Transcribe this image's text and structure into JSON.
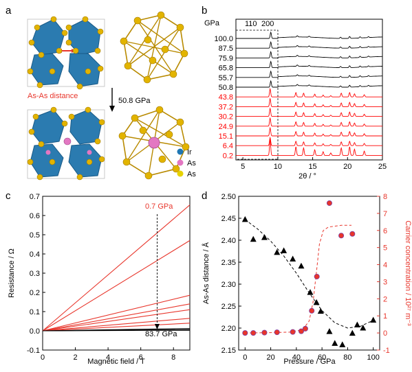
{
  "panels": {
    "a": {
      "letter": "a",
      "distance_label": "As-As distance",
      "arrow_label": "50.8 GPa",
      "legend": [
        {
          "label": "Ir",
          "color": "#1f77b4"
        },
        {
          "label": "As",
          "color": "#e377c2"
        },
        {
          "label": "As",
          "color": "#e6d200"
        }
      ]
    },
    "b": {
      "letter": "b",
      "unit_label": "GPa",
      "peak_labels": [
        "110",
        "200"
      ],
      "pressures_black": [
        "100.0",
        "87.5",
        "75.9",
        "65.8",
        "55.7",
        "50.8"
      ],
      "pressures_red": [
        "43.8",
        "37.2",
        "30.2",
        "24.9",
        "15.1",
        "6.4",
        "0.2"
      ],
      "xlabel": "2θ / °",
      "xticks": [
        "5",
        "10",
        "15",
        "20",
        "25"
      ]
    },
    "c": {
      "letter": "c",
      "annotation_top": "0.7 GPa",
      "annotation_bottom": "83.7 GPa"
    },
    "d": {
      "letter": "d"
    }
  },
  "chart_data": [
    {
      "type": "line",
      "panel": "b",
      "xlabel": "2θ / °",
      "xlim": [
        4,
        25
      ],
      "series": [
        {
          "name": "100.0",
          "color": "#000000"
        },
        {
          "name": "87.5",
          "color": "#000000"
        },
        {
          "name": "75.9",
          "color": "#000000"
        },
        {
          "name": "65.8",
          "color": "#000000"
        },
        {
          "name": "55.7",
          "color": "#000000"
        },
        {
          "name": "50.8",
          "color": "#000000"
        },
        {
          "name": "43.8",
          "color": "#ff0000"
        },
        {
          "name": "37.2",
          "color": "#ff0000"
        },
        {
          "name": "30.2",
          "color": "#ff0000"
        },
        {
          "name": "24.9",
          "color": "#ff0000"
        },
        {
          "name": "15.1",
          "color": "#ff0000"
        },
        {
          "name": "6.4",
          "color": "#ff0000"
        },
        {
          "name": "0.2",
          "color": "#ff0000"
        }
      ]
    },
    {
      "type": "line",
      "panel": "c",
      "xlabel": "Magnetic field / T",
      "ylabel": "Resistance / Ω",
      "xlim": [
        0,
        9
      ],
      "ylim": [
        -0.1,
        0.7
      ],
      "xticks": [
        0,
        2,
        4,
        6,
        8
      ],
      "yticks": [
        -0.1,
        0.0,
        0.1,
        0.2,
        0.3,
        0.4,
        0.5,
        0.6,
        0.7
      ],
      "marker_x": 7,
      "series": [
        {
          "values": [
            [
              0,
              0
            ],
            [
              9,
              0.655
            ]
          ],
          "color": "#e8352b"
        },
        {
          "values": [
            [
              0,
              0
            ],
            [
              9,
              0.47
            ]
          ],
          "color": "#e8352b"
        },
        {
          "values": [
            [
              0,
              0
            ],
            [
              9,
              0.185
            ]
          ],
          "color": "#e8352b"
        },
        {
          "values": [
            [
              0,
              0
            ],
            [
              9,
              0.14
            ]
          ],
          "color": "#e8352b"
        },
        {
          "values": [
            [
              0,
              0
            ],
            [
              9,
              0.11
            ]
          ],
          "color": "#e8352b"
        },
        {
          "values": [
            [
              0,
              0
            ],
            [
              9,
              0.065
            ]
          ],
          "color": "#e8352b"
        },
        {
          "values": [
            [
              0,
              0
            ],
            [
              9,
              0.04
            ]
          ],
          "color": "#e8352b"
        },
        {
          "values": [
            [
              0,
              0
            ],
            [
              9,
              0.012
            ]
          ],
          "color": "#000000"
        },
        {
          "values": [
            [
              0,
              0
            ],
            [
              9,
              0.006
            ]
          ],
          "color": "#000000"
        },
        {
          "values": [
            [
              0,
              0
            ],
            [
              9,
              0.003
            ]
          ],
          "color": "#000000"
        }
      ]
    },
    {
      "type": "scatter",
      "panel": "d",
      "xlabel": "Pressure / GPa",
      "ylabel": "As-As distance / Å",
      "y2label": "Carrier concentration / 10²⁷ m⁻³",
      "xlim": [
        -5,
        105
      ],
      "ylim": [
        2.15,
        2.5
      ],
      "y2lim": [
        -1,
        8
      ],
      "xticks": [
        0,
        20,
        40,
        60,
        80,
        100
      ],
      "yticks": [
        2.15,
        2.2,
        2.25,
        2.3,
        2.35,
        2.4,
        2.45,
        2.5
      ],
      "y2ticks": [
        -1,
        0,
        1,
        2,
        3,
        4,
        5,
        6,
        7,
        8
      ],
      "series": [
        {
          "axis": "left",
          "color": "#000000",
          "points": [
            [
              0,
              2.447
            ],
            [
              6.4,
              2.402
            ],
            [
              15.1,
              2.406
            ],
            [
              24.9,
              2.372
            ],
            [
              30.2,
              2.376
            ],
            [
              37.2,
              2.357
            ],
            [
              43.8,
              2.341
            ],
            [
              50.8,
              2.281
            ],
            [
              55.7,
              2.258
            ],
            [
              59,
              2.238
            ],
            [
              65.8,
              2.192
            ],
            [
              70,
              2.165
            ],
            [
              75.9,
              2.162
            ],
            [
              83.7,
              2.188
            ],
            [
              87.5,
              2.207
            ],
            [
              92,
              2.2
            ],
            [
              100,
              2.218
            ]
          ],
          "fit": [
            [
              0,
              2.447
            ],
            [
              10,
              2.425
            ],
            [
              20,
              2.398
            ],
            [
              30,
              2.365
            ],
            [
              40,
              2.325
            ],
            [
              50,
              2.28
            ],
            [
              60,
              2.24
            ],
            [
              70,
              2.212
            ],
            [
              80,
              2.2
            ],
            [
              90,
              2.204
            ],
            [
              98,
              2.215
            ]
          ]
        },
        {
          "axis": "right",
          "color": "#e8352b",
          "points": [
            [
              0,
              0.0
            ],
            [
              6.4,
              0.0
            ],
            [
              15.1,
              0.02
            ],
            [
              24.9,
              0.04
            ],
            [
              37.2,
              0.06
            ],
            [
              43.8,
              0.1
            ],
            [
              47,
              0.25
            ],
            [
              52,
              1.3
            ],
            [
              56,
              3.3
            ],
            [
              65.8,
              7.6
            ],
            [
              75,
              5.7
            ],
            [
              83.7,
              5.8
            ]
          ],
          "fit": [
            [
              0,
              0
            ],
            [
              20,
              0.02
            ],
            [
              35,
              0.05
            ],
            [
              45,
              0.2
            ],
            [
              50,
              0.7
            ],
            [
              53,
              1.8
            ],
            [
              56,
              3.8
            ],
            [
              58,
              5.2
            ],
            [
              61,
              6.0
            ],
            [
              65,
              6.2
            ],
            [
              75,
              6.3
            ],
            [
              83,
              6.3
            ]
          ]
        }
      ]
    }
  ]
}
